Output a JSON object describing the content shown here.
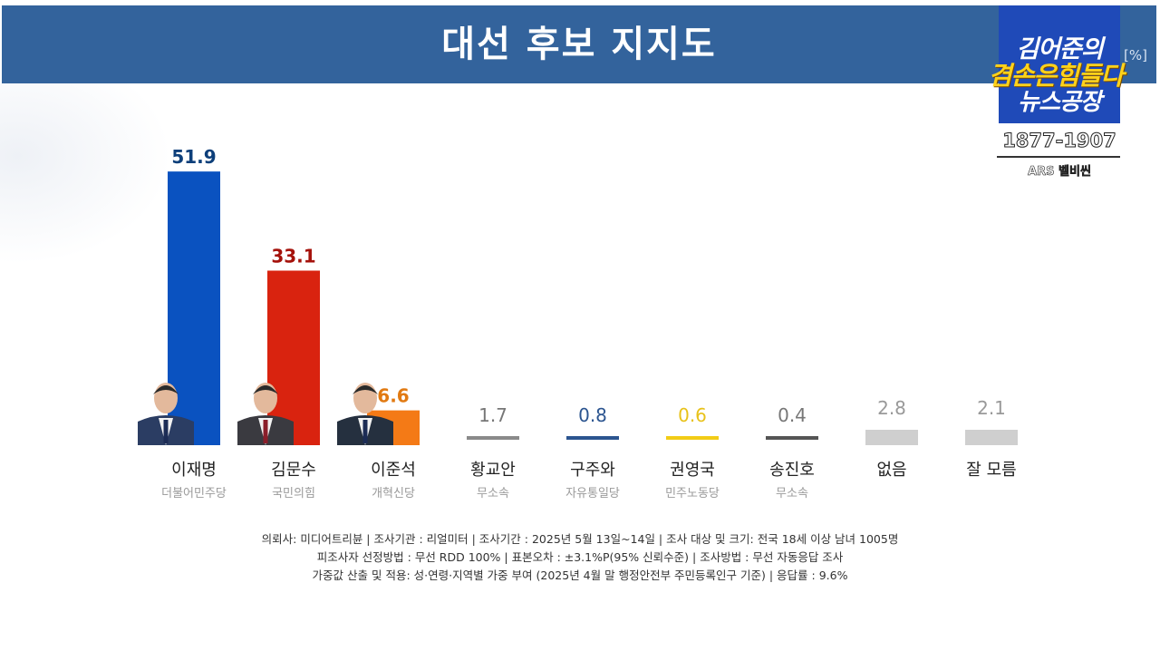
{
  "header": {
    "title": "대선 후보 지지도",
    "unit": "[%]"
  },
  "logo": {
    "line1": "김어준의",
    "line2": "겸손은힘들다",
    "line3": "뉴스공장",
    "phone": "1877-1907",
    "ars": "ARS 벨비씬"
  },
  "chart_data": {
    "type": "bar",
    "title": "대선 후보 지지도",
    "unit": "%",
    "categories": [
      "이재명",
      "김문수",
      "이준석",
      "황교안",
      "구주와",
      "권영국",
      "송진호",
      "없음",
      "잘 모름"
    ],
    "subcategories": [
      "더불어민주당",
      "국민의힘",
      "개혁신당",
      "무소속",
      "자유통일당",
      "민주노동당",
      "무소속",
      "",
      ""
    ],
    "values": [
      51.9,
      33.1,
      6.6,
      1.7,
      0.8,
      0.6,
      0.4,
      2.8,
      2.1
    ],
    "value_labels": [
      "51.9",
      "33.1",
      "6.6",
      "1.7",
      "0.8",
      "0.6",
      "0.4",
      "2.8",
      "2.1"
    ],
    "colors": [
      "#0a52c0",
      "#d9230f",
      "#f47a16",
      "#8a8a8a",
      "#2c5590",
      "#f2cc16",
      "#555555",
      "#cfcfcf",
      "#cfcfcf"
    ],
    "label_colors": [
      "#0d3f7a",
      "#a5120b",
      "#e17a12",
      "#777777",
      "#2c5590",
      "#e8c21a",
      "#777777",
      "#999999",
      "#999999"
    ],
    "ylim": [
      0,
      60
    ],
    "grid": false,
    "legend": "none"
  },
  "footnote": {
    "line1": "의뢰사: 미디어트리뷴  | 조사기관 : 리얼미터  | 조사기간 : 2025년 5월 13일~14일 | 조사 대상 및 크기: 전국 18세 이상 남녀 1005명",
    "line2": "피조사자 선정방법 : 무선 RDD 100% | 표본오차 : ±3.1%P(95% 신뢰수준) | 조사방법 : 무선 자동응답 조사",
    "line3": "가중값 산출 및 적용: 성·연령·지역별 가중 부여 (2025년 4월 말 행정안전부 주민등록인구 기준) | 응답률 : 9.6%"
  }
}
